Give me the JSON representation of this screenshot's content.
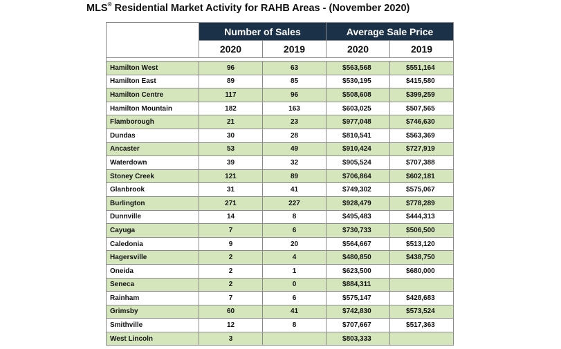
{
  "title": {
    "prefix": "MLS",
    "reg": "®",
    "text": " Residential Market Activity for RAHB Areas - (November 2020)"
  },
  "table": {
    "group_headers": [
      "Number of Sales",
      "Average Sale Price"
    ],
    "year_headers": [
      "2020",
      "2019",
      "2020",
      "2019"
    ],
    "rows": [
      [
        "Hamilton West",
        "96",
        "63",
        "$563,568",
        "$551,164"
      ],
      [
        "Hamilton East",
        "89",
        "85",
        "$530,195",
        "$415,580"
      ],
      [
        "Hamilton Centre",
        "117",
        "96",
        "$508,608",
        "$399,259"
      ],
      [
        "Hamilton Mountain",
        "182",
        "163",
        "$603,025",
        "$507,565"
      ],
      [
        "Flamborough",
        "21",
        "23",
        "$977,048",
        "$746,630"
      ],
      [
        "Dundas",
        "30",
        "28",
        "$810,541",
        "$563,369"
      ],
      [
        "Ancaster",
        "53",
        "49",
        "$910,424",
        "$727,919"
      ],
      [
        "Waterdown",
        "39",
        "32",
        "$905,524",
        "$707,388"
      ],
      [
        "Stoney Creek",
        "121",
        "89",
        "$706,864",
        "$602,181"
      ],
      [
        "Glanbrook",
        "31",
        "41",
        "$749,302",
        "$575,067"
      ],
      [
        "Burlington",
        "271",
        "227",
        "$928,479",
        "$778,289"
      ],
      [
        "Dunnville",
        "14",
        "8",
        "$495,483",
        "$444,313"
      ],
      [
        "Cayuga",
        "7",
        "6",
        "$730,733",
        "$506,500"
      ],
      [
        "Caledonia",
        "9",
        "20",
        "$564,667",
        "$513,120"
      ],
      [
        "Hagersville",
        "2",
        "4",
        "$480,850",
        "$438,750"
      ],
      [
        "Oneida",
        "2",
        "1",
        "$623,500",
        "$680,000"
      ],
      [
        "Seneca",
        "2",
        "0",
        "$884,311",
        ""
      ],
      [
        "Rainham",
        "7",
        "6",
        "$575,147",
        "$428,683"
      ],
      [
        "Grimsby",
        "60",
        "41",
        "$742,830",
        "$573,524"
      ],
      [
        "Smithville",
        "12",
        "8",
        "$707,667",
        "$517,363"
      ],
      [
        "West Lincoln",
        "3",
        "",
        "$803,333",
        ""
      ]
    ]
  },
  "colors": {
    "header_bg": "#1b3148",
    "row_highlight": "#d5e6bd"
  }
}
